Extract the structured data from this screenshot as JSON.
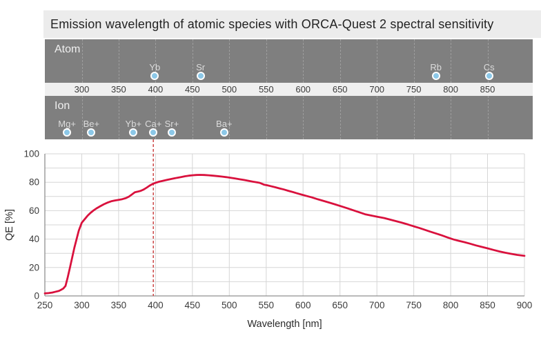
{
  "title": "Emission wavelength of atomic species with ORCA-Quest 2 spectral sensitivity",
  "bands": {
    "atom": {
      "label": "Atom",
      "markers": [
        {
          "label": "Yb",
          "nm": 399
        },
        {
          "label": "Sr",
          "nm": 461
        },
        {
          "label": "Rb",
          "nm": 780
        },
        {
          "label": "Cs",
          "nm": 852
        }
      ]
    },
    "ion": {
      "label": "Ion",
      "markers": [
        {
          "label": "Mg+",
          "nm": 280
        },
        {
          "label": "Be+",
          "nm": 313
        },
        {
          "label": "Yb+",
          "nm": 370
        },
        {
          "label": "Ca+",
          "nm": 397
        },
        {
          "label": "Sr+",
          "nm": 422
        },
        {
          "label": "Ba+",
          "nm": 493
        }
      ]
    },
    "scale_ticks": [
      300,
      350,
      400,
      450,
      500,
      550,
      600,
      650,
      700,
      750,
      800,
      850
    ]
  },
  "chart_data": {
    "type": "line",
    "title": "Emission wavelength of atomic species with ORCA-Quest 2 spectral sensitivity",
    "xlabel": "Wavelength [nm]",
    "ylabel": "QE [%]",
    "xlim": [
      250,
      900
    ],
    "ylim": [
      0,
      100
    ],
    "x_ticks": [
      250,
      300,
      350,
      400,
      450,
      500,
      550,
      600,
      650,
      700,
      750,
      800,
      850,
      900
    ],
    "y_ticks": [
      0,
      20,
      40,
      60,
      80,
      100
    ],
    "grid": "on",
    "minor_grid_y_step": 10,
    "legend": "none",
    "reference_line": {
      "x": 397,
      "style": "dashed",
      "associated_ion": "Ca+"
    },
    "series": [
      {
        "name": "ORCA-Quest 2 QE",
        "x": [
          250,
          255,
          260,
          265,
          269,
          272,
          275,
          278,
          281,
          284,
          287,
          290,
          293,
          296,
          300,
          304,
          308,
          312,
          316,
          320,
          325,
          330,
          335,
          340,
          345,
          350,
          355,
          360,
          364,
          368,
          372,
          376,
          380,
          384,
          388,
          392,
          396,
          400,
          405,
          410,
          415,
          420,
          425,
          430,
          435,
          440,
          445,
          450,
          455,
          460,
          466,
          472,
          478,
          484,
          490,
          496,
          502,
          508,
          514,
          520,
          526,
          532,
          537,
          541,
          544,
          547,
          551,
          556,
          562,
          568,
          574,
          580,
          586,
          592,
          598,
          605,
          612,
          620,
          628,
          636,
          644,
          652,
          660,
          668,
          676,
          684,
          692,
          700,
          710,
          718,
          726,
          734,
          742,
          750,
          757,
          764,
          772,
          780,
          788,
          796,
          804,
          811,
          818,
          826,
          834,
          842,
          850,
          858,
          866,
          874,
          882,
          890,
          900
        ],
        "y": [
          1.8,
          2.0,
          2.4,
          3.0,
          3.5,
          4.3,
          5.2,
          7.0,
          13,
          20,
          27,
          34,
          40,
          46,
          51.5,
          54,
          56.5,
          58.5,
          60.2,
          61.6,
          63.1,
          64.5,
          65.7,
          66.6,
          67.2,
          67.6,
          68.1,
          68.9,
          69.9,
          71.4,
          72.9,
          73.4,
          74.0,
          74.9,
          76.2,
          77.6,
          78.8,
          79.6,
          80.4,
          81.0,
          81.6,
          82.2,
          82.7,
          83.2,
          83.7,
          84.2,
          84.6,
          84.9,
          85.1,
          85.2,
          85.1,
          84.9,
          84.6,
          84.3,
          84.0,
          83.6,
          83.1,
          82.6,
          82.1,
          81.6,
          81.0,
          80.4,
          80.0,
          79.6,
          79.0,
          78.3,
          77.9,
          77.3,
          76.5,
          75.7,
          74.9,
          74.0,
          73.1,
          72.2,
          71.3,
          70.3,
          69.3,
          68.0,
          66.8,
          65.6,
          64.3,
          63.0,
          61.7,
          60.3,
          58.9,
          57.5,
          56.6,
          55.8,
          54.8,
          53.7,
          52.6,
          51.5,
          50.3,
          49.0,
          47.9,
          46.7,
          45.3,
          44.0,
          42.6,
          41.1,
          39.7,
          38.8,
          37.9,
          36.8,
          35.6,
          34.5,
          33.5,
          32.4,
          31.3,
          30.4,
          29.6,
          28.9,
          28.2
        ]
      }
    ]
  },
  "colors": {
    "curve": "#d9113d",
    "reference_dashed": "#cc4545",
    "band_bg": "#7f7f7f",
    "band_grid": "#a9a9a9",
    "strip_bg": "#efefef",
    "title_bg": "#ececec",
    "marker_fill": "#8cc8e8",
    "marker_ring": "#ffffff",
    "plot_grid": "#d6d6d6",
    "axis": "#8f8f8f",
    "tick_text": "#3a3a3a",
    "band_text": "#e8e8e8"
  }
}
